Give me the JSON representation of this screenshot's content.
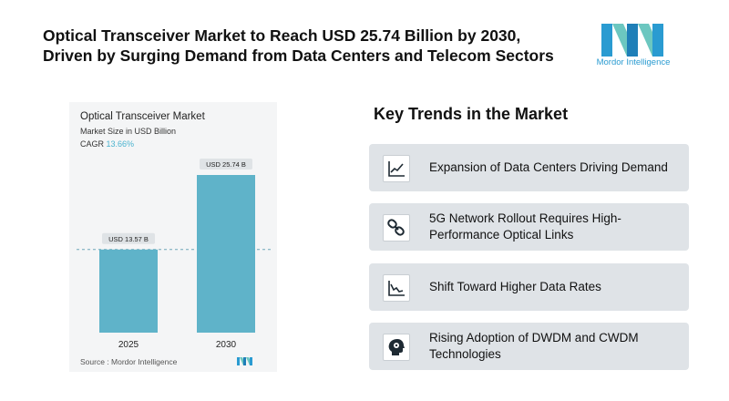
{
  "header": {
    "title_line1": "Optical Transceiver Market to Reach USD 25.74 Billion by 2030,",
    "title_line2": "Driven by Surging Demand from Data Centers and Telecom Sectors",
    "logo_text": "Mordor Intelligence",
    "logo_colors": [
      "#2a9bd1",
      "#6cc7c0",
      "#1f7fb8"
    ]
  },
  "chart_card": {
    "source_label": "Source : ",
    "source_value": "Mordor Intelligence"
  },
  "chart_data": {
    "type": "bar",
    "title": "Optical Transceiver Market",
    "subtitle": "Market Size in USD Billion",
    "cagr_label": "CAGR",
    "cagr_value": "13.66%",
    "categories": [
      "2025",
      "2030"
    ],
    "values": [
      13.57,
      25.74
    ],
    "data_labels": [
      "USD 13.57 B",
      "USD 25.74 B"
    ],
    "ylim": [
      0,
      25.74
    ],
    "grid": false,
    "reference_line": "dashed line at 2025 value",
    "bar_color": "#5fb3c9"
  },
  "trends": {
    "title": "Key Trends in the Market",
    "items": [
      {
        "label": "Expansion of Data Centers Driving Demand",
        "icon": "line-chart-up-icon"
      },
      {
        "label": "5G Network Rollout Requires High-Performance Optical Links",
        "icon": "chain-link-icon"
      },
      {
        "label": "Shift Toward Higher Data Rates",
        "icon": "line-chart-down-icon"
      },
      {
        "label": "Rising Adoption of DWDM and CWDM Technologies",
        "icon": "brain-gear-icon"
      }
    ]
  }
}
